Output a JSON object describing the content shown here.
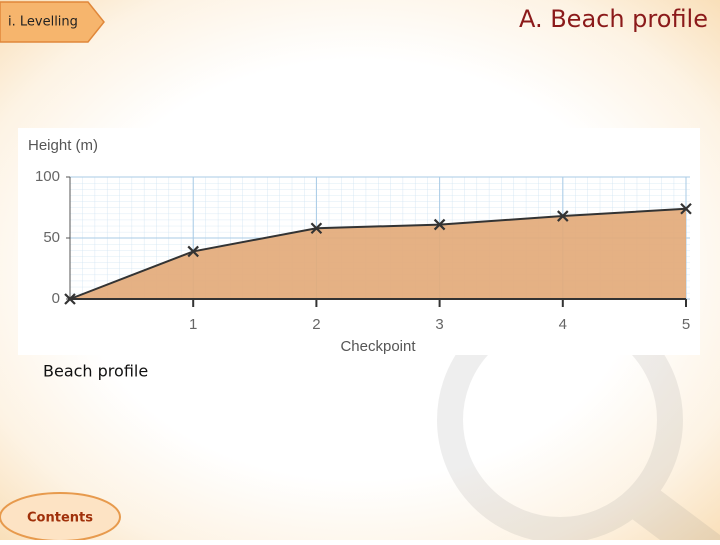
{
  "tag": "i. Levelling",
  "heading": "A. Beach profile",
  "caption": "Beach profile",
  "button": "Contents",
  "chart_data": {
    "type": "area",
    "y_label": "Height (m)",
    "x_label": "Checkpoint",
    "x": [
      0,
      1,
      2,
      3,
      4,
      5
    ],
    "values": [
      0,
      39,
      58,
      61,
      68,
      74
    ],
    "color": "#e3aa7a",
    "line_color": "#333333",
    "xlim": [
      0,
      5
    ],
    "xticks": [
      1,
      2,
      3,
      4,
      5
    ],
    "ylim": [
      0,
      100
    ],
    "yticks": [
      0,
      50,
      100
    ],
    "grid": true
  }
}
